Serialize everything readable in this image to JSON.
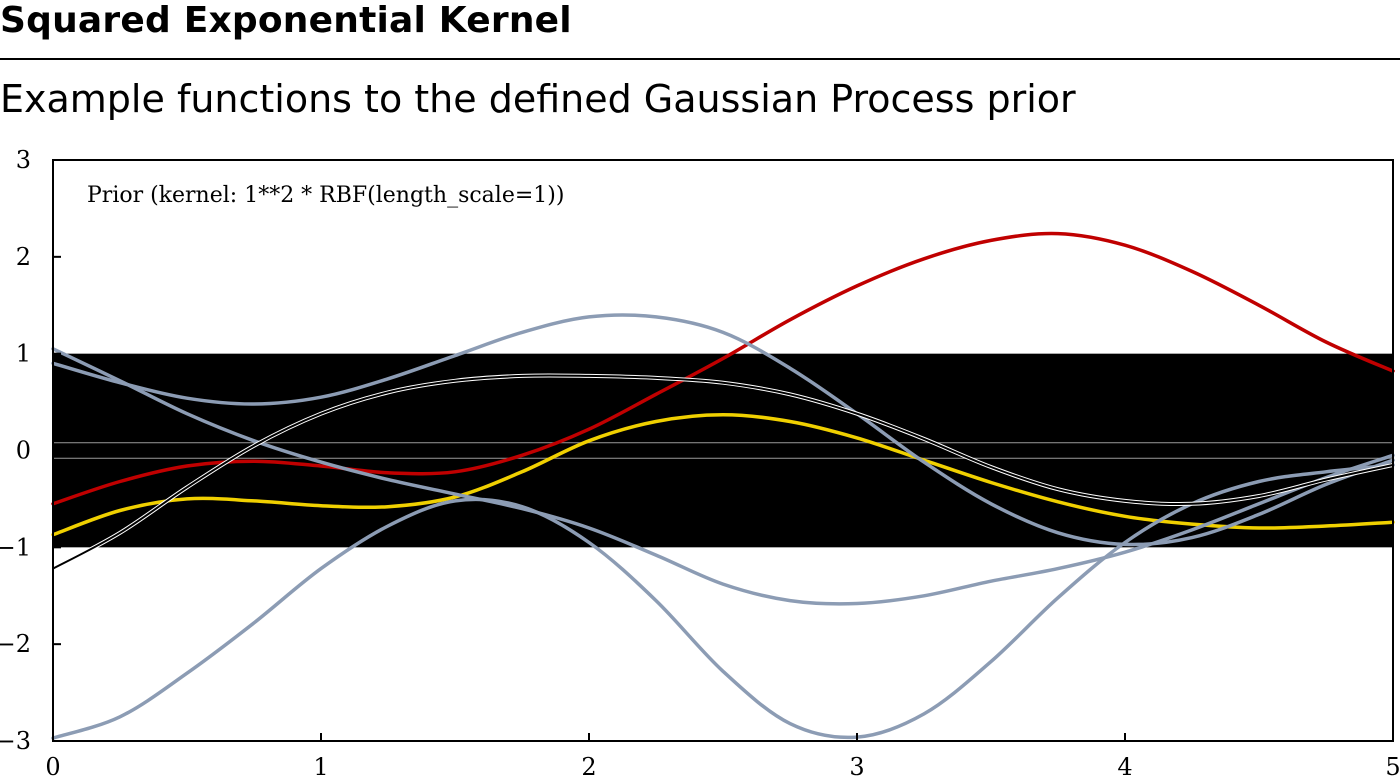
{
  "header": {
    "title": "Squared Exponential Kernel",
    "subtitle": "Example functions to the defined Gaussian Process prior"
  },
  "chart_data": {
    "type": "line",
    "title": "",
    "xlabel": "",
    "ylabel": "",
    "annotation": "Prior (kernel:  1**2 * RBF(length_scale=1))",
    "xlim": [
      0,
      5
    ],
    "ylim": [
      -3,
      3
    ],
    "x_ticks": [
      0,
      1,
      2,
      3,
      4,
      5
    ],
    "y_ticks": [
      -3,
      -2,
      -1,
      0,
      1,
      2,
      3
    ],
    "grid": false,
    "band": {
      "mean": 0,
      "lower": -1,
      "upper": 1,
      "color": "#000000"
    },
    "mean_line": {
      "y": 0,
      "color": "#000000"
    },
    "series": [
      {
        "color": "#c00000",
        "x": [
          0,
          0.25,
          0.5,
          0.75,
          1,
          1.25,
          1.5,
          1.75,
          2,
          2.25,
          2.5,
          2.75,
          3,
          3.25,
          3.5,
          3.75,
          4,
          4.25,
          4.5,
          4.75,
          5
        ],
        "y": [
          -0.55,
          -0.32,
          -0.16,
          -0.11,
          -0.16,
          -0.23,
          -0.22,
          -0.05,
          0.22,
          0.58,
          0.95,
          1.35,
          1.7,
          1.98,
          2.17,
          2.24,
          2.12,
          1.85,
          1.5,
          1.12,
          0.82
        ]
      },
      {
        "color": "#f0d000",
        "x": [
          0,
          0.25,
          0.5,
          0.75,
          1,
          1.25,
          1.5,
          1.75,
          2,
          2.25,
          2.5,
          2.75,
          3,
          3.25,
          3.5,
          3.75,
          4,
          4.25,
          4.5,
          4.75,
          5
        ],
        "y": [
          -0.87,
          -0.62,
          -0.5,
          -0.52,
          -0.57,
          -0.58,
          -0.48,
          -0.22,
          0.1,
          0.3,
          0.37,
          0.3,
          0.13,
          -0.1,
          -0.33,
          -0.53,
          -0.68,
          -0.76,
          -0.8,
          -0.78,
          -0.74
        ]
      },
      {
        "color": "#8c9cb4",
        "x": [
          0,
          0.25,
          0.5,
          0.75,
          1,
          1.25,
          1.5,
          1.75,
          2,
          2.25,
          2.5,
          2.75,
          3,
          3.25,
          3.5,
          3.75,
          4,
          4.25,
          4.5,
          4.75,
          5
        ],
        "y": [
          0.9,
          0.7,
          0.54,
          0.48,
          0.55,
          0.74,
          0.98,
          1.22,
          1.38,
          1.38,
          1.22,
          0.85,
          0.38,
          -0.12,
          -0.55,
          -0.85,
          -0.97,
          -0.9,
          -0.66,
          -0.35,
          -0.1
        ]
      },
      {
        "color": "#8c9cb4",
        "x": [
          0,
          0.25,
          0.5,
          0.75,
          1,
          1.25,
          1.5,
          1.75,
          2,
          2.25,
          2.5,
          2.75,
          3,
          3.25,
          3.5,
          3.75,
          4,
          4.25,
          4.5,
          4.75,
          5
        ],
        "y": [
          1.05,
          0.72,
          0.38,
          0.1,
          -0.12,
          -0.3,
          -0.45,
          -0.6,
          -0.8,
          -1.08,
          -1.38,
          -1.55,
          -1.58,
          -1.5,
          -1.35,
          -1.22,
          -1.05,
          -0.82,
          -0.55,
          -0.28,
          -0.05
        ]
      },
      {
        "color": "#8c9cb4",
        "x": [
          0,
          0.25,
          0.5,
          0.75,
          1,
          1.25,
          1.5,
          1.75,
          2,
          2.25,
          2.5,
          2.75,
          3,
          3.25,
          3.5,
          3.75,
          4,
          4.25,
          4.5,
          4.75,
          5
        ],
        "y": [
          -2.97,
          -2.75,
          -2.3,
          -1.78,
          -1.22,
          -0.78,
          -0.52,
          -0.58,
          -0.95,
          -1.55,
          -2.28,
          -2.82,
          -2.96,
          -2.72,
          -2.18,
          -1.52,
          -0.95,
          -0.55,
          -0.32,
          -0.22,
          -0.15
        ]
      },
      {
        "color": "#000000",
        "x": [
          0,
          0.25,
          0.5,
          0.75,
          1,
          1.25,
          1.5,
          1.75,
          2,
          2.25,
          2.5,
          2.75,
          3,
          3.25,
          3.5,
          3.75,
          4,
          4.25,
          4.5,
          4.75,
          5
        ],
        "y": [
          -1.22,
          -0.85,
          -0.38,
          0.05,
          0.38,
          0.6,
          0.72,
          0.77,
          0.77,
          0.75,
          0.7,
          0.58,
          0.38,
          0.12,
          -0.17,
          -0.4,
          -0.52,
          -0.55,
          -0.47,
          -0.3,
          -0.15
        ]
      }
    ]
  }
}
